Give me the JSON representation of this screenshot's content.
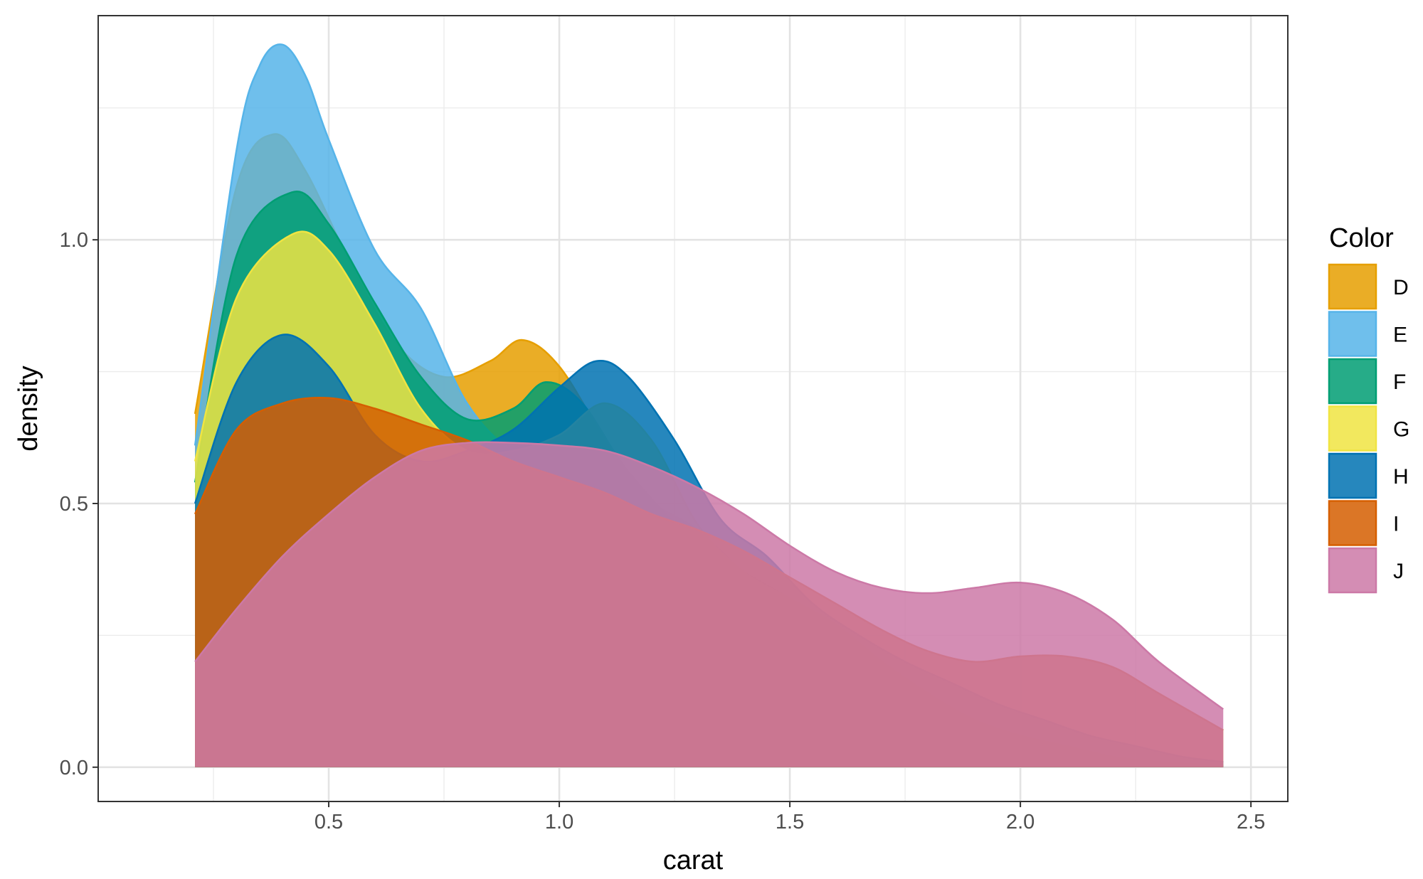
{
  "chart_data": {
    "type": "area",
    "subtype": "density",
    "title": "",
    "xlabel": "carat",
    "ylabel": "density",
    "xlim": [
      0.0,
      2.58
    ],
    "ylim": [
      -0.065,
      1.425
    ],
    "x_ticks": [
      0.5,
      1.0,
      1.5,
      2.0,
      2.5
    ],
    "x_tick_labels": [
      "0.5",
      "1.0",
      "1.5",
      "2.0",
      "2.5"
    ],
    "y_ticks": [
      0.0,
      0.5,
      1.0
    ],
    "y_tick_labels": [
      "0.0",
      "0.5",
      "1.0"
    ],
    "grid": true,
    "legend": {
      "title": "Color",
      "position": "right"
    },
    "series": [
      {
        "name": "D",
        "color": "#E69F00",
        "points": [
          [
            0.21,
            0.67
          ],
          [
            0.3,
            1.1
          ],
          [
            0.38,
            1.2
          ],
          [
            0.45,
            1.13
          ],
          [
            0.55,
            0.95
          ],
          [
            0.65,
            0.8
          ],
          [
            0.75,
            0.74
          ],
          [
            0.85,
            0.77
          ],
          [
            0.92,
            0.81
          ],
          [
            1.0,
            0.76
          ],
          [
            1.1,
            0.62
          ],
          [
            1.2,
            0.5
          ],
          [
            1.3,
            0.42
          ],
          [
            1.4,
            0.37
          ],
          [
            1.5,
            0.32
          ],
          [
            1.6,
            0.27
          ],
          [
            1.7,
            0.2
          ],
          [
            1.8,
            0.14
          ],
          [
            1.9,
            0.09
          ],
          [
            2.0,
            0.06
          ],
          [
            2.1,
            0.04
          ],
          [
            2.2,
            0.02
          ],
          [
            2.3,
            0.01
          ],
          [
            2.44,
            0.003
          ]
        ]
      },
      {
        "name": "E",
        "color": "#56B4E9",
        "points": [
          [
            0.21,
            0.61
          ],
          [
            0.3,
            1.17
          ],
          [
            0.35,
            1.33
          ],
          [
            0.4,
            1.37
          ],
          [
            0.45,
            1.31
          ],
          [
            0.5,
            1.19
          ],
          [
            0.6,
            0.98
          ],
          [
            0.7,
            0.87
          ],
          [
            0.8,
            0.69
          ],
          [
            0.9,
            0.6
          ],
          [
            1.0,
            0.59
          ],
          [
            1.1,
            0.56
          ],
          [
            1.2,
            0.5
          ],
          [
            1.3,
            0.45
          ],
          [
            1.4,
            0.37
          ],
          [
            1.5,
            0.31
          ],
          [
            1.6,
            0.26
          ],
          [
            1.7,
            0.2
          ],
          [
            1.8,
            0.14
          ],
          [
            1.9,
            0.09
          ],
          [
            2.0,
            0.06
          ],
          [
            2.1,
            0.04
          ],
          [
            2.2,
            0.02
          ],
          [
            2.3,
            0.01
          ],
          [
            2.44,
            0.003
          ]
        ]
      },
      {
        "name": "F",
        "color": "#009E73",
        "points": [
          [
            0.21,
            0.54
          ],
          [
            0.3,
            0.97
          ],
          [
            0.42,
            1.09
          ],
          [
            0.5,
            1.03
          ],
          [
            0.6,
            0.88
          ],
          [
            0.7,
            0.74
          ],
          [
            0.8,
            0.66
          ],
          [
            0.9,
            0.68
          ],
          [
            0.97,
            0.73
          ],
          [
            1.05,
            0.69
          ],
          [
            1.15,
            0.56
          ],
          [
            1.3,
            0.42
          ],
          [
            1.4,
            0.37
          ],
          [
            1.5,
            0.32
          ],
          [
            1.6,
            0.27
          ],
          [
            1.7,
            0.2
          ],
          [
            1.8,
            0.14
          ],
          [
            1.9,
            0.09
          ],
          [
            2.0,
            0.06
          ],
          [
            2.1,
            0.04
          ],
          [
            2.2,
            0.02
          ],
          [
            2.3,
            0.01
          ],
          [
            2.44,
            0.003
          ]
        ]
      },
      {
        "name": "G",
        "color": "#F0E442",
        "points": [
          [
            0.21,
            0.58
          ],
          [
            0.3,
            0.89
          ],
          [
            0.42,
            1.01
          ],
          [
            0.5,
            0.98
          ],
          [
            0.6,
            0.84
          ],
          [
            0.7,
            0.68
          ],
          [
            0.8,
            0.6
          ],
          [
            0.9,
            0.6
          ],
          [
            1.0,
            0.63
          ],
          [
            1.1,
            0.69
          ],
          [
            1.2,
            0.62
          ],
          [
            1.3,
            0.46
          ],
          [
            1.4,
            0.37
          ],
          [
            1.5,
            0.32
          ],
          [
            1.6,
            0.27
          ],
          [
            1.7,
            0.2
          ],
          [
            1.8,
            0.14
          ],
          [
            1.9,
            0.09
          ],
          [
            2.0,
            0.06
          ],
          [
            2.1,
            0.04
          ],
          [
            2.2,
            0.02
          ],
          [
            2.3,
            0.01
          ],
          [
            2.44,
            0.003
          ]
        ]
      },
      {
        "name": "H",
        "color": "#0072B2",
        "points": [
          [
            0.21,
            0.5
          ],
          [
            0.3,
            0.73
          ],
          [
            0.4,
            0.82
          ],
          [
            0.5,
            0.76
          ],
          [
            0.6,
            0.63
          ],
          [
            0.7,
            0.58
          ],
          [
            0.8,
            0.6
          ],
          [
            0.9,
            0.64
          ],
          [
            1.0,
            0.72
          ],
          [
            1.08,
            0.77
          ],
          [
            1.15,
            0.74
          ],
          [
            1.25,
            0.62
          ],
          [
            1.35,
            0.47
          ],
          [
            1.45,
            0.4
          ],
          [
            1.55,
            0.31
          ],
          [
            1.65,
            0.25
          ],
          [
            1.75,
            0.2
          ],
          [
            1.85,
            0.16
          ],
          [
            1.95,
            0.12
          ],
          [
            2.05,
            0.09
          ],
          [
            2.15,
            0.06
          ],
          [
            2.25,
            0.04
          ],
          [
            2.35,
            0.02
          ],
          [
            2.44,
            0.01
          ]
        ]
      },
      {
        "name": "I",
        "color": "#D55E00",
        "points": [
          [
            0.21,
            0.48
          ],
          [
            0.3,
            0.64
          ],
          [
            0.4,
            0.69
          ],
          [
            0.5,
            0.7
          ],
          [
            0.6,
            0.68
          ],
          [
            0.7,
            0.65
          ],
          [
            0.8,
            0.62
          ],
          [
            0.9,
            0.58
          ],
          [
            1.0,
            0.55
          ],
          [
            1.1,
            0.52
          ],
          [
            1.2,
            0.48
          ],
          [
            1.3,
            0.45
          ],
          [
            1.4,
            0.41
          ],
          [
            1.5,
            0.36
          ],
          [
            1.6,
            0.31
          ],
          [
            1.7,
            0.26
          ],
          [
            1.8,
            0.22
          ],
          [
            1.9,
            0.2
          ],
          [
            2.0,
            0.21
          ],
          [
            2.1,
            0.21
          ],
          [
            2.2,
            0.19
          ],
          [
            2.3,
            0.14
          ],
          [
            2.44,
            0.07
          ]
        ]
      },
      {
        "name": "J",
        "color": "#CC79A7",
        "points": [
          [
            0.21,
            0.2
          ],
          [
            0.3,
            0.3
          ],
          [
            0.4,
            0.4
          ],
          [
            0.5,
            0.48
          ],
          [
            0.6,
            0.55
          ],
          [
            0.7,
            0.6
          ],
          [
            0.8,
            0.615
          ],
          [
            0.9,
            0.615
          ],
          [
            1.0,
            0.61
          ],
          [
            1.1,
            0.6
          ],
          [
            1.2,
            0.57
          ],
          [
            1.3,
            0.53
          ],
          [
            1.4,
            0.48
          ],
          [
            1.5,
            0.42
          ],
          [
            1.6,
            0.37
          ],
          [
            1.7,
            0.34
          ],
          [
            1.8,
            0.33
          ],
          [
            1.9,
            0.34
          ],
          [
            2.0,
            0.35
          ],
          [
            2.1,
            0.33
          ],
          [
            2.2,
            0.28
          ],
          [
            2.3,
            0.2
          ],
          [
            2.44,
            0.11
          ]
        ]
      }
    ]
  }
}
